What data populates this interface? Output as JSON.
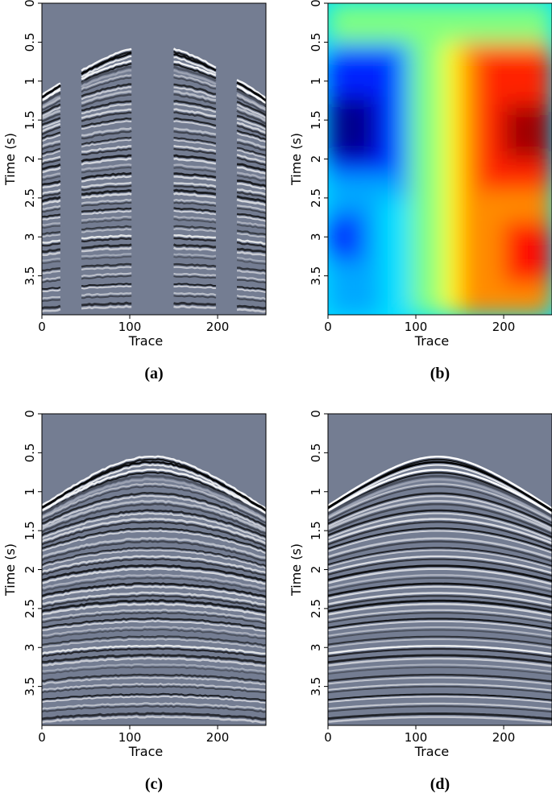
{
  "chart_data": [
    {
      "id": "a",
      "type": "heatmap",
      "caption": "(a)",
      "xlabel": "Trace",
      "ylabel": "Time (s)",
      "x_ticks": [
        "0",
        "100",
        "200"
      ],
      "y_ticks": [
        "0",
        "0.5",
        "1",
        "1.5",
        "2",
        "2.5",
        "3",
        "3.5"
      ],
      "xlim": [
        0,
        255
      ],
      "ylim": [
        0,
        4
      ],
      "y_inverted": true,
      "colormap": "gray",
      "content": "seismic gather with missing trace gaps",
      "trace_segments": [
        [
          0,
          22
        ],
        [
          45,
          102
        ],
        [
          150,
          200
        ],
        [
          222,
          255
        ]
      ]
    },
    {
      "id": "b",
      "type": "heatmap",
      "caption": "(b)",
      "xlabel": "Trace",
      "ylabel": "Time (s)",
      "x_ticks": [
        "0",
        "100",
        "200"
      ],
      "y_ticks": [
        "0",
        "0.5",
        "1",
        "1.5",
        "2",
        "2.5",
        "3",
        "3.5"
      ],
      "xlim": [
        0,
        255
      ],
      "ylim": [
        0,
        4
      ],
      "y_inverted": true,
      "colormap": "jet",
      "content": "slope / dip field"
    },
    {
      "id": "c",
      "type": "heatmap",
      "caption": "(c)",
      "xlabel": "Trace",
      "ylabel": "Time (s)",
      "x_ticks": [
        "0",
        "100",
        "200"
      ],
      "y_ticks": [
        "0",
        "0.5",
        "1",
        "1.5",
        "2",
        "2.5",
        "3",
        "3.5"
      ],
      "xlim": [
        0,
        255
      ],
      "ylim": [
        0,
        4
      ],
      "y_inverted": true,
      "colormap": "gray",
      "content": "interpolated seismic gather"
    },
    {
      "id": "d",
      "type": "heatmap",
      "caption": "(d)",
      "xlabel": "Trace",
      "ylabel": "Time (s)",
      "x_ticks": [
        "0",
        "100",
        "200"
      ],
      "y_ticks": [
        "0",
        "0.5",
        "1",
        "1.5",
        "2",
        "2.5",
        "3",
        "3.5"
      ],
      "xlim": [
        0,
        255
      ],
      "ylim": [
        0,
        4
      ],
      "y_inverted": true,
      "colormap": "gray",
      "content": "complete seismic gather"
    }
  ],
  "colors": {
    "background_gray": "#747d92",
    "jet_dark_blue": "#00008f",
    "jet_red": "#ff0000"
  }
}
